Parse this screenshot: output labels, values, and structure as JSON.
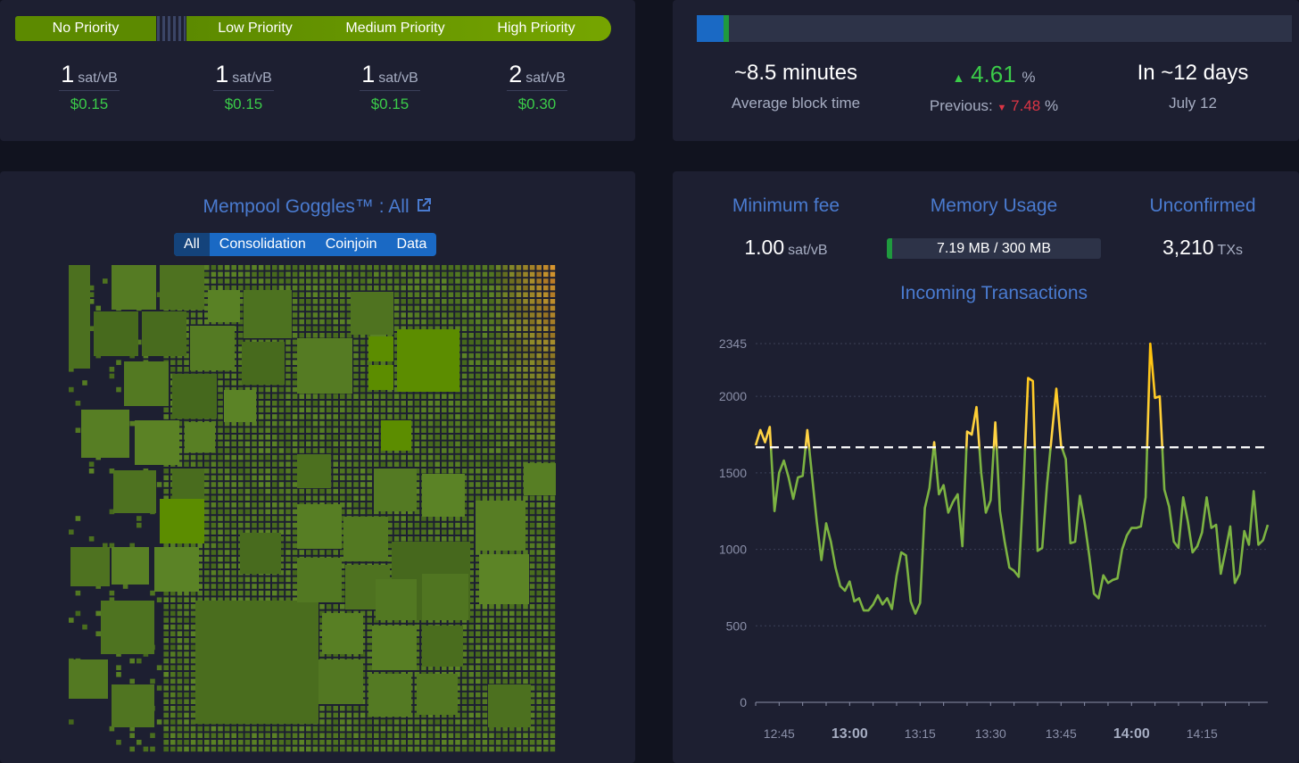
{
  "fees": {
    "tiers": [
      {
        "label": "No Priority",
        "rate": "1",
        "unit": "sat/vB",
        "usd": "$0.15"
      },
      {
        "label": "Low Priority",
        "rate": "1",
        "unit": "sat/vB",
        "usd": "$0.15"
      },
      {
        "label": "Medium Priority",
        "rate": "1",
        "unit": "sat/vB",
        "usd": "$0.15"
      },
      {
        "label": "High Priority",
        "rate": "2",
        "unit": "sat/vB",
        "usd": "$0.30"
      }
    ]
  },
  "difficulty": {
    "progress_fraction": 0.045,
    "avg_block_time": "~8.5 minutes",
    "avg_block_time_label": "Average block time",
    "change": "4.61",
    "change_unit": "%",
    "previous_label": "Previous:",
    "previous_change": "7.48",
    "previous_unit": "%",
    "eta": "In ~12 days",
    "eta_date": "July 12",
    "colors": {
      "up": "#3bcc49",
      "down": "#dc3545",
      "done": "#1a69c4",
      "mined": "#1f9a3e"
    }
  },
  "goggles": {
    "title": "Mempool Goggles™ : All",
    "link_icon": "external-link-icon",
    "tabs": [
      "All",
      "Consolidation",
      "Coinjoin",
      "Data"
    ],
    "active_tab": "All"
  },
  "stats": {
    "min_fee_title": "Minimum fee",
    "min_fee_value": "1.00",
    "min_fee_unit": "sat/vB",
    "memory_title": "Memory Usage",
    "memory_text": "7.19 MB / 300 MB",
    "memory_fraction": 0.024,
    "unconfirmed_title": "Unconfirmed",
    "unconfirmed_value": "3,210",
    "unconfirmed_unit": "TXs",
    "incoming_title": "Incoming Transactions"
  },
  "chart_data": {
    "type": "line",
    "title": "Incoming Transactions",
    "y_ticks": [
      0,
      500,
      1000,
      1500,
      2000,
      2345
    ],
    "ylim": [
      0,
      2345
    ],
    "x_ticks": [
      {
        "label": "12:45",
        "bold": false
      },
      {
        "label": "13:00",
        "bold": true
      },
      {
        "label": "13:15",
        "bold": false
      },
      {
        "label": "13:30",
        "bold": false
      },
      {
        "label": "13:45",
        "bold": false
      },
      {
        "label": "14:00",
        "bold": true
      },
      {
        "label": "14:15",
        "bold": false
      }
    ],
    "xlim": [
      "12:40",
      "14:29"
    ],
    "threshold": 1667,
    "series": [
      {
        "x": [
          "12:40",
          "12:41",
          "12:42",
          "12:43",
          "12:44",
          "12:45",
          "12:46",
          "12:47",
          "12:48",
          "12:49",
          "12:50",
          "12:51",
          "12:52",
          "12:53",
          "12:54",
          "12:55",
          "12:56",
          "12:57",
          "12:58",
          "12:59",
          "13:00",
          "13:01",
          "13:02",
          "13:03",
          "13:04",
          "13:05",
          "13:06",
          "13:07",
          "13:08",
          "13:09",
          "13:10",
          "13:11",
          "13:12",
          "13:13",
          "13:14",
          "13:15",
          "13:16",
          "13:17",
          "13:18",
          "13:19",
          "13:20",
          "13:21",
          "13:22",
          "13:23",
          "13:24",
          "13:25",
          "13:26",
          "13:27",
          "13:28",
          "13:29",
          "13:30",
          "13:31",
          "13:32",
          "13:33",
          "13:34",
          "13:35",
          "13:36",
          "13:37",
          "13:38",
          "13:39",
          "13:40",
          "13:41",
          "13:42",
          "13:43",
          "13:44",
          "13:45",
          "13:46",
          "13:47",
          "13:48",
          "13:49",
          "13:50",
          "13:51",
          "13:52",
          "13:53",
          "13:54",
          "13:55",
          "13:56",
          "13:57",
          "13:58",
          "13:59",
          "14:00",
          "14:01",
          "14:02",
          "14:03",
          "14:04",
          "14:05",
          "14:06",
          "14:07",
          "14:08",
          "14:09",
          "14:10",
          "14:11",
          "14:12",
          "14:13",
          "14:14",
          "14:15",
          "14:16",
          "14:17",
          "14:18",
          "14:19",
          "14:20",
          "14:21",
          "14:22",
          "14:23",
          "14:24",
          "14:25",
          "14:26",
          "14:27",
          "14:28",
          "14:29"
        ],
        "values": [
          1680,
          1780,
          1700,
          1800,
          1250,
          1500,
          1580,
          1470,
          1330,
          1470,
          1480,
          1780,
          1480,
          1180,
          930,
          1170,
          1050,
          880,
          760,
          730,
          790,
          660,
          680,
          600,
          600,
          640,
          700,
          640,
          680,
          610,
          830,
          980,
          960,
          660,
          580,
          650,
          1270,
          1400,
          1700,
          1360,
          1420,
          1240,
          1310,
          1360,
          1020,
          1770,
          1750,
          1930,
          1500,
          1240,
          1320,
          1830,
          1250,
          1050,
          880,
          860,
          820,
          1420,
          2120,
          2100,
          990,
          1010,
          1420,
          1740,
          2050,
          1680,
          1590,
          1040,
          1050,
          1350,
          1180,
          960,
          710,
          680,
          830,
          780,
          800,
          810,
          1000,
          1090,
          1140,
          1140,
          1150,
          1340,
          2345,
          1990,
          2000,
          1390,
          1280,
          1050,
          1010,
          1340,
          1180,
          980,
          1020,
          1110,
          1340,
          1140,
          1160,
          840,
          990,
          1150,
          780,
          840,
          1120,
          1030,
          1380,
          1030,
          1060,
          1160
        ]
      }
    ]
  }
}
